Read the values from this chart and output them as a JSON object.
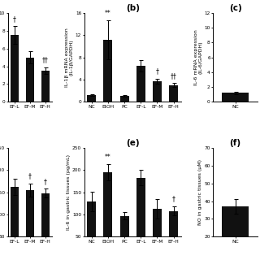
{
  "panel_b": {
    "label": "(b)",
    "categories": [
      "NC",
      "EtOH",
      "PC",
      "EF-L",
      "EF-M",
      "EF-H"
    ],
    "values": [
      1.2,
      11.2,
      1.0,
      6.5,
      3.7,
      3.0
    ],
    "errors": [
      0.2,
      3.5,
      0.15,
      1.0,
      0.5,
      0.35
    ],
    "ylabel": "IL-1β mRNA expression\n(IL-1β/GAPDH)",
    "ylim": [
      0,
      16
    ],
    "yticks": [
      0,
      4,
      8,
      12,
      16
    ],
    "significance": {
      "EtOH": "**",
      "EF-M": "†",
      "EF-H": "††"
    }
  },
  "panel_c": {
    "label": "(c)",
    "categories": [
      "NC"
    ],
    "values": [
      1.2
    ],
    "errors": [
      0.15
    ],
    "ylabel": "IL-6 mRNA expression\n(IL-6/GAPDH)",
    "ylim": [
      0,
      12
    ],
    "yticks": [
      0,
      2,
      4,
      6,
      8,
      10,
      12
    ],
    "significance": {}
  },
  "panel_left_top": {
    "categories": [
      "EF-L",
      "EF-M",
      "EF-H"
    ],
    "values": [
      7.5,
      5.0,
      3.5
    ],
    "errors": [
      1.0,
      0.7,
      0.4
    ],
    "ylim": [
      0,
      10
    ],
    "yticks": [
      0,
      2,
      4,
      6,
      8,
      10
    ],
    "significance": {
      "EF-L": "†",
      "EF-H": "††"
    }
  },
  "panel_e": {
    "label": "(e)",
    "categories": [
      "NC",
      "EtOH",
      "PC",
      "EF-L",
      "EF-M",
      "EF-H"
    ],
    "values": [
      130,
      195,
      97,
      183,
      113,
      108
    ],
    "errors": [
      22,
      18,
      8,
      17,
      22,
      10
    ],
    "ylabel": "IL-6 in gastric tissues (pg/mL)",
    "ylim": [
      50,
      250
    ],
    "yticks": [
      50,
      100,
      150,
      200,
      250
    ],
    "significance": {
      "EtOH": "**",
      "EF-H": "†"
    }
  },
  "panel_f": {
    "label": "(f)",
    "categories": [
      "NC"
    ],
    "values": [
      37
    ],
    "errors": [
      4
    ],
    "ylabel": "NO in gastric tissues (μM)",
    "ylim": [
      20,
      70
    ],
    "yticks": [
      20,
      30,
      40,
      50,
      60,
      70
    ],
    "significance": {}
  },
  "panel_left_bottom": {
    "categories": [
      "EF-L",
      "EF-M",
      "EF-H"
    ],
    "values": [
      162,
      155,
      148
    ],
    "errors": [
      18,
      15,
      10
    ],
    "ylim": [
      50,
      250
    ],
    "yticks": [
      50,
      100,
      150,
      200,
      250
    ],
    "significance": {
      "EF-M": "†",
      "EF-H": "†"
    }
  },
  "bar_color": "#111111",
  "bar_width": 0.55,
  "fontsize_label": 4.5,
  "fontsize_tick": 4.2,
  "fontsize_panel": 7.5,
  "fontsize_sig": 5.5
}
